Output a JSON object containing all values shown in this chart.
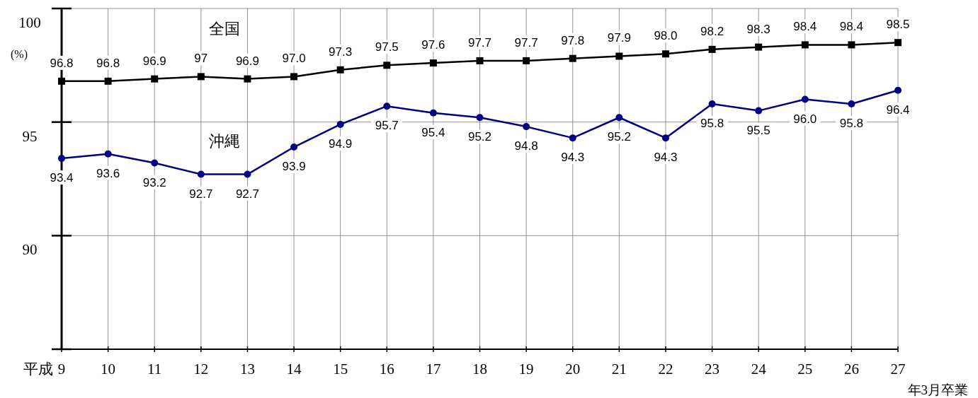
{
  "chart_data": {
    "type": "line",
    "ylabel": "(%)",
    "xlabel": "年3月卒業",
    "annotations": [
      "平成"
    ],
    "categories": [
      "9",
      "10",
      "11",
      "12",
      "13",
      "14",
      "15",
      "16",
      "17",
      "18",
      "19",
      "20",
      "21",
      "22",
      "23",
      "24",
      "25",
      "26",
      "27"
    ],
    "ylim": [
      85,
      100
    ],
    "yticks": [
      {
        "value": 85,
        "label": null
      },
      90,
      95,
      100
    ],
    "grid": true,
    "series": [
      {
        "name": "全国",
        "color": "#000000",
        "marker": "square",
        "values": [
          96.8,
          96.8,
          96.9,
          97,
          96.9,
          97.0,
          97.3,
          97.5,
          97.6,
          97.7,
          97.7,
          97.8,
          97.9,
          98.0,
          98.2,
          98.3,
          98.4,
          98.4,
          98.5
        ],
        "value_labels": [
          "96.8",
          "96.8",
          "96.9",
          "97",
          "96.9",
          "97.0",
          "97.3",
          "97.5",
          "97.6",
          "97.7",
          "97.7",
          "97.8",
          "97.9",
          "98.0",
          "98.2",
          "98.3",
          "98.4",
          "98.4",
          "98.5"
        ]
      },
      {
        "name": "沖縄",
        "color": "#000080",
        "marker": "circle",
        "values": [
          93.4,
          93.6,
          93.2,
          92.7,
          92.7,
          93.9,
          94.9,
          95.7,
          95.4,
          95.2,
          94.8,
          94.3,
          95.2,
          94.3,
          95.8,
          95.5,
          96.0,
          95.8,
          96.4
        ],
        "value_labels": [
          "93.4",
          "93.6",
          "93.2",
          "92.7",
          "92.7",
          "93.9",
          "94.9",
          "95.7",
          "95.4",
          "95.2",
          "94.8",
          "94.3",
          "95.2",
          "94.3",
          "95.8",
          "95.5",
          "96.0",
          "95.8",
          "96.4"
        ]
      }
    ]
  }
}
